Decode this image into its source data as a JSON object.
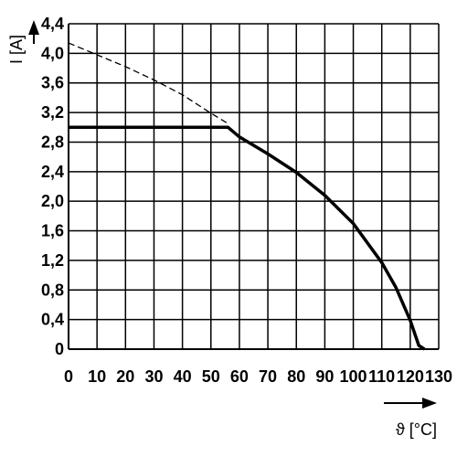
{
  "chart_data": {
    "type": "line",
    "xlabel": "ϑ [°C]",
    "ylabel": "I [A]",
    "xlim": [
      0,
      130
    ],
    "ylim": [
      0,
      4.4
    ],
    "grid": true,
    "x_ticks": [
      0,
      10,
      20,
      30,
      40,
      50,
      60,
      70,
      80,
      90,
      100,
      110,
      120,
      130
    ],
    "x_tick_labels": [
      "0",
      "10",
      "20",
      "30",
      "40",
      "50",
      "60",
      "70",
      "80",
      "90",
      "100",
      "110",
      "120",
      "130"
    ],
    "y_ticks": [
      0,
      0.4,
      0.8,
      1.2,
      1.6,
      2.0,
      2.4,
      2.8,
      3.2,
      3.6,
      4.0,
      4.4
    ],
    "y_tick_labels": [
      "0",
      "0,4",
      "0,8",
      "1,2",
      "1,6",
      "2,0",
      "2,4",
      "2,8",
      "3,2",
      "3,6",
      "4,0",
      "4,4"
    ],
    "series": [
      {
        "style": "solid",
        "x": [
          0,
          56,
          60,
          70,
          80,
          90,
          100,
          110,
          115,
          120,
          123,
          125
        ],
        "y": [
          3.0,
          3.0,
          2.87,
          2.64,
          2.39,
          2.08,
          1.7,
          1.17,
          0.83,
          0.39,
          0.05,
          0
        ]
      },
      {
        "style": "dashed",
        "x": [
          0,
          10,
          20,
          30,
          40,
          50,
          56
        ],
        "y": [
          4.14,
          3.98,
          3.82,
          3.64,
          3.44,
          3.19,
          3.05
        ]
      }
    ]
  }
}
